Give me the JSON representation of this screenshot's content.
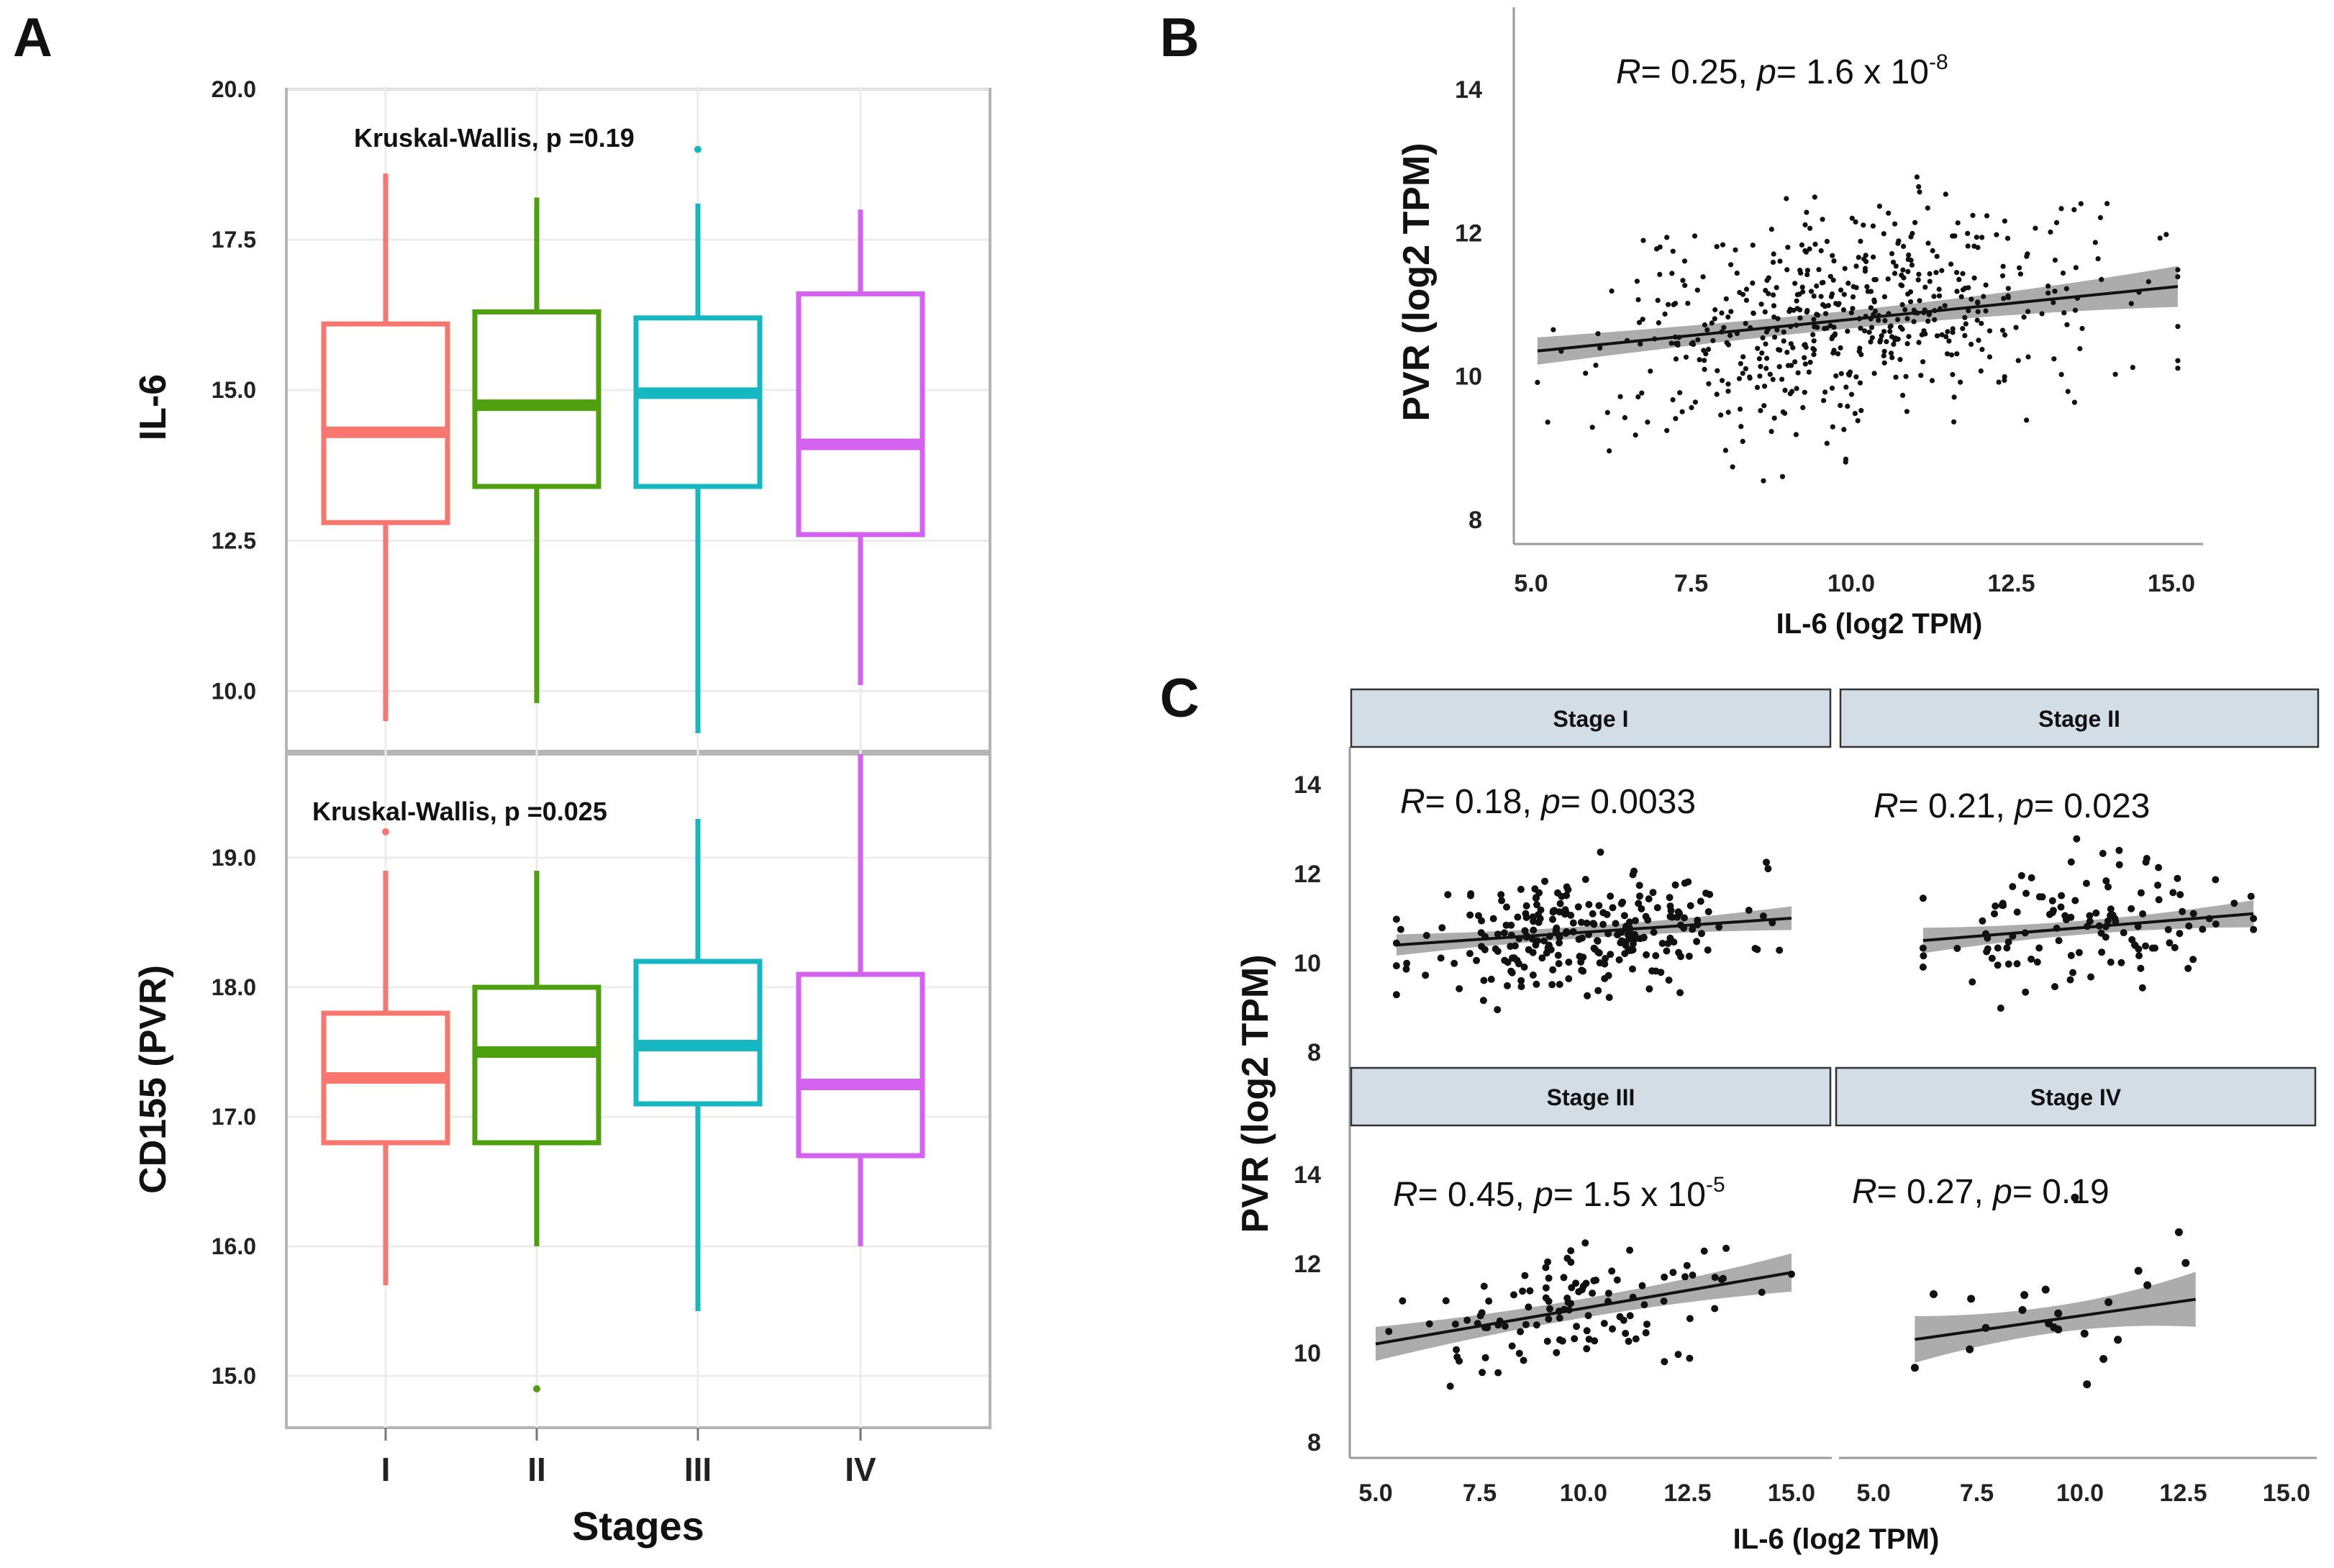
{
  "panels": {
    "A": "A",
    "B": "B",
    "C": "C"
  },
  "chart_data": [
    {
      "id": "A-top",
      "type": "box",
      "title": "",
      "annotation": "Kruskal-Wallis, p =0.19",
      "ylabel": "IL-6",
      "xlabel": "Stages",
      "categories": [
        "I",
        "II",
        "III",
        "IV"
      ],
      "colors": [
        "#f8766d",
        "#4fa00e",
        "#15b8c0",
        "#d462f0"
      ],
      "ylim": [
        9.0,
        20.0
      ],
      "yticks": [
        10.0,
        12.5,
        15.0,
        17.5,
        20.0
      ],
      "ytick_labels": [
        "10.0",
        "12.5",
        "15.0",
        "17.5",
        "20.0"
      ],
      "boxes": [
        {
          "whisker_low": 9.5,
          "q1": 12.8,
          "median": 14.3,
          "q3": 16.1,
          "whisker_high": 18.6,
          "outliers": []
        },
        {
          "whisker_low": 9.8,
          "q1": 13.4,
          "median": 14.75,
          "q3": 16.3,
          "whisker_high": 18.2,
          "outliers": []
        },
        {
          "whisker_low": 9.3,
          "q1": 13.4,
          "median": 14.95,
          "q3": 16.2,
          "whisker_high": 18.1,
          "outliers": [
            19.0
          ]
        },
        {
          "whisker_low": 10.1,
          "q1": 12.6,
          "median": 14.1,
          "q3": 16.6,
          "whisker_high": 18.0,
          "outliers": []
        }
      ]
    },
    {
      "id": "A-bottom",
      "type": "box",
      "annotation": "Kruskal-Wallis, p =0.025",
      "ylabel": "CD155 (PVR)",
      "xlabel": "Stages",
      "categories": [
        "I",
        "II",
        "III",
        "IV"
      ],
      "colors": [
        "#f8766d",
        "#4fa00e",
        "#15b8c0",
        "#d462f0"
      ],
      "ylim": [
        14.6,
        19.8
      ],
      "yticks": [
        15.0,
        16.0,
        17.0,
        18.0,
        19.0
      ],
      "ytick_labels": [
        "15.0",
        "16.0",
        "17.0",
        "18.0",
        "19.0"
      ],
      "boxes": [
        {
          "whisker_low": 15.7,
          "q1": 16.8,
          "median": 17.3,
          "q3": 17.8,
          "whisker_high": 18.9,
          "outliers": [
            19.2
          ]
        },
        {
          "whisker_low": 16.0,
          "q1": 16.8,
          "median": 17.5,
          "q3": 18.0,
          "whisker_high": 18.9,
          "outliers": [
            14.9
          ]
        },
        {
          "whisker_low": 15.5,
          "q1": 17.1,
          "median": 17.55,
          "q3": 18.2,
          "whisker_high": 19.3,
          "outliers": []
        },
        {
          "whisker_low": 16.0,
          "q1": 16.7,
          "median": 17.25,
          "q3": 18.1,
          "whisker_high": 19.8,
          "outliers": []
        }
      ]
    },
    {
      "id": "B",
      "type": "scatter",
      "xlabel": "IL-6 (log2 TPM)",
      "ylabel": "PVR (log2 TPM)",
      "xlim": [
        4.8,
        15.5
      ],
      "ylim": [
        7.5,
        15.2
      ],
      "xticks": [
        5.0,
        7.5,
        10.0,
        12.5,
        15.0
      ],
      "xtick_labels": [
        "5.0",
        "7.5",
        "10.0",
        "12.5",
        "15.0"
      ],
      "yticks": [
        8,
        10,
        12,
        14
      ],
      "ytick_labels": [
        "8",
        "10",
        "12",
        "14"
      ],
      "stat_R": "R",
      "stat_R_val": "= 0.25, ",
      "stat_p": "p",
      "stat_p_val": "= 1.6 x 10",
      "stat_p_exp": "-8",
      "fit": {
        "x0": 5.1,
        "y0": 10.35,
        "x1": 15.1,
        "y1": 11.25,
        "band0": 0.2,
        "band1": 0.3
      },
      "n_points": 560,
      "seed": 7,
      "x_mean": 10.0,
      "x_sd": 1.9,
      "y_sd": 0.75,
      "x_range": [
        5.1,
        15.1
      ]
    },
    {
      "id": "C-I",
      "type": "scatter",
      "strip": "Stage I",
      "stat_R": "R",
      "stat_R_val": "= 0.18, ",
      "stat_p": "p",
      "stat_p_val": "= 0.0033",
      "stat_p_exp": "",
      "fit": {
        "x0": 5.5,
        "y0": 10.4,
        "x1": 15.0,
        "y1": 11.0,
        "band0": 0.25,
        "band1": 0.28
      },
      "n_points": 260,
      "seed": 11,
      "x_mean": 10.0,
      "x_sd": 1.9,
      "y_sd": 0.65,
      "x_range": [
        5.5,
        15.0
      ]
    },
    {
      "id": "C-II",
      "type": "scatter",
      "strip": "Stage II",
      "stat_R": "R",
      "stat_R_val": "= 0.21, ",
      "stat_p": "p",
      "stat_p_val": "= 0.023",
      "stat_p_exp": "",
      "fit": {
        "x0": 6.2,
        "y0": 10.5,
        "x1": 14.2,
        "y1": 11.1,
        "band0": 0.3,
        "band1": 0.32
      },
      "n_points": 120,
      "seed": 23,
      "x_mean": 10.0,
      "x_sd": 1.8,
      "y_sd": 0.65,
      "x_range": [
        6.2,
        14.2
      ]
    },
    {
      "id": "C-III",
      "type": "scatter",
      "strip": "Stage III",
      "stat_R": "R",
      "stat_R_val": "= 0.45, ",
      "stat_p": "p",
      "stat_p_val": "= 1.5 x 10",
      "stat_p_exp": "-5",
      "fit": {
        "x0": 5.0,
        "y0": 10.2,
        "x1": 15.0,
        "y1": 11.8,
        "band0": 0.4,
        "band1": 0.45
      },
      "n_points": 110,
      "seed": 41,
      "x_mean": 10.0,
      "x_sd": 2.0,
      "y_sd": 0.6,
      "x_range": [
        5.0,
        15.0
      ]
    },
    {
      "id": "C-IV",
      "type": "scatter",
      "strip": "Stage IV",
      "stat_R": "R",
      "stat_R_val": "= 0.27, ",
      "stat_p": "p",
      "stat_p_val": "= 0.19",
      "stat_p_exp": "",
      "fit": {
        "x0": 6.0,
        "y0": 10.3,
        "x1": 12.8,
        "y1": 11.2,
        "band0": 0.55,
        "band1": 0.65
      },
      "n_points": 22,
      "seed": 59,
      "x_mean": 9.5,
      "x_sd": 1.9,
      "y_sd": 0.7,
      "x_range": [
        6.0,
        12.8
      ]
    }
  ],
  "panelC": {
    "xlabel": "IL-6 (log2 TPM)",
    "ylabel": "PVR (log2 TPM)",
    "xlim": [
      4.5,
      15.5
    ],
    "ylim": [
      7.5,
      15.0
    ],
    "xticks": [
      5.0,
      7.5,
      10.0,
      12.5,
      15.0
    ],
    "xtick_labels": [
      "5.0",
      "7.5",
      "10.0",
      "12.5",
      "15.0"
    ],
    "yticks": [
      8,
      10,
      12,
      14
    ],
    "ytick_labels": [
      "8",
      "10",
      "12",
      "14"
    ]
  }
}
